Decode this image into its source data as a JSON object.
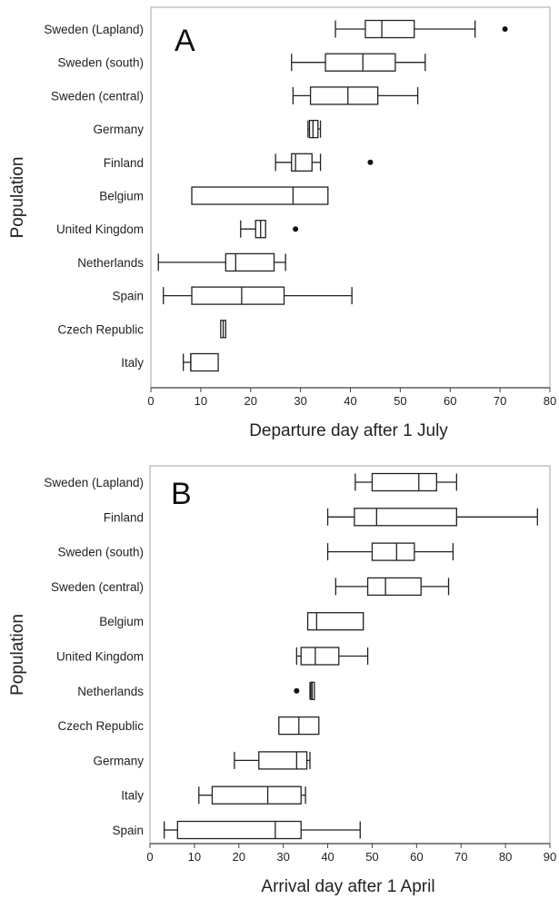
{
  "chart_data": [
    {
      "type": "boxplot",
      "panel_label": "A",
      "xlabel": "Departure day after 1 July",
      "ylabel": "Population",
      "xlim": [
        0,
        80
      ],
      "xticks": [
        0,
        10,
        20,
        30,
        40,
        50,
        60,
        70,
        80
      ],
      "grid": false,
      "categories": [
        "Sweden (Lapland)",
        "Sweden (south)",
        "Sweden (central)",
        "Germany",
        "Finland",
        "Belgium",
        "United Kingdom",
        "Netherlands",
        "Spain",
        "Czech Republic",
        "Italy"
      ],
      "boxes": [
        {
          "min": 37,
          "q1": 43,
          "median": 46.3,
          "q3": 52.8,
          "max": 65,
          "outliers": [
            71
          ]
        },
        {
          "min": 28.2,
          "q1": 35,
          "median": 42.5,
          "q3": 49,
          "max": 55,
          "outliers": []
        },
        {
          "min": 28.5,
          "q1": 32,
          "median": 39.5,
          "q3": 45.5,
          "max": 53.5,
          "outliers": []
        },
        {
          "min": 31.5,
          "q1": 31.8,
          "median": 32.5,
          "q3": 33.5,
          "max": 34,
          "outliers": []
        },
        {
          "min": 25,
          "q1": 28.2,
          "median": 29,
          "q3": 32.3,
          "max": 34,
          "outliers": [
            44
          ]
        },
        {
          "min": 8.2,
          "q1": 8.2,
          "median": 28.5,
          "q3": 35.5,
          "max": 35.5,
          "outliers": []
        },
        {
          "min": 18,
          "q1": 21,
          "median": 22,
          "q3": 23,
          "max": 23,
          "outliers": [
            29
          ]
        },
        {
          "min": 1.5,
          "q1": 15,
          "median": 17,
          "q3": 24.7,
          "max": 27,
          "outliers": []
        },
        {
          "min": 2.5,
          "q1": 8.2,
          "median": 18.2,
          "q3": 26.7,
          "max": 40.3,
          "outliers": []
        },
        {
          "min": 14,
          "q1": 14,
          "median": 14.5,
          "q3": 15,
          "max": 15,
          "outliers": []
        },
        {
          "min": 6.5,
          "q1": 8,
          "median": 8,
          "q3": 13.5,
          "max": 13.5,
          "outliers": []
        }
      ]
    },
    {
      "type": "boxplot",
      "panel_label": "B",
      "xlabel": "Arrival day after 1 April",
      "ylabel": "Population",
      "xlim": [
        0,
        90
      ],
      "xticks": [
        0,
        10,
        20,
        30,
        40,
        50,
        60,
        70,
        80,
        90
      ],
      "grid": false,
      "categories": [
        "Sweden (Lapland)",
        "Finland",
        "Sweden (south)",
        "Sweden (central)",
        "Belgium",
        "United Kingdom",
        "Netherlands",
        "Czech Republic",
        "Germany",
        "Italy",
        "Spain"
      ],
      "boxes": [
        {
          "min": 46.2,
          "q1": 50,
          "median": 60.5,
          "q3": 64.5,
          "max": 69,
          "outliers": []
        },
        {
          "min": 40,
          "q1": 46,
          "median": 51,
          "q3": 69,
          "max": 87.2,
          "outliers": []
        },
        {
          "min": 40,
          "q1": 50,
          "median": 55.5,
          "q3": 59.5,
          "max": 68.2,
          "outliers": []
        },
        {
          "min": 41.8,
          "q1": 49,
          "median": 53,
          "q3": 61,
          "max": 67.2,
          "outliers": []
        },
        {
          "min": 35.5,
          "q1": 35.5,
          "median": 37.5,
          "q3": 48,
          "max": 48,
          "outliers": []
        },
        {
          "min": 33,
          "q1": 34,
          "median": 37.2,
          "q3": 42.5,
          "max": 49,
          "outliers": []
        },
        {
          "min": 36,
          "q1": 36.2,
          "median": 36.5,
          "q3": 37,
          "max": 37,
          "outliers": [
            33
          ]
        },
        {
          "min": 29,
          "q1": 29,
          "median": 33.5,
          "q3": 38,
          "max": 38,
          "outliers": []
        },
        {
          "min": 19,
          "q1": 24.5,
          "median": 33,
          "q3": 35.3,
          "max": 36,
          "outliers": []
        },
        {
          "min": 11,
          "q1": 14,
          "median": 26.5,
          "q3": 34,
          "max": 35,
          "outliers": []
        },
        {
          "min": 3.2,
          "q1": 6.2,
          "median": 28.2,
          "q3": 34,
          "max": 47.3,
          "outliers": []
        }
      ]
    }
  ]
}
